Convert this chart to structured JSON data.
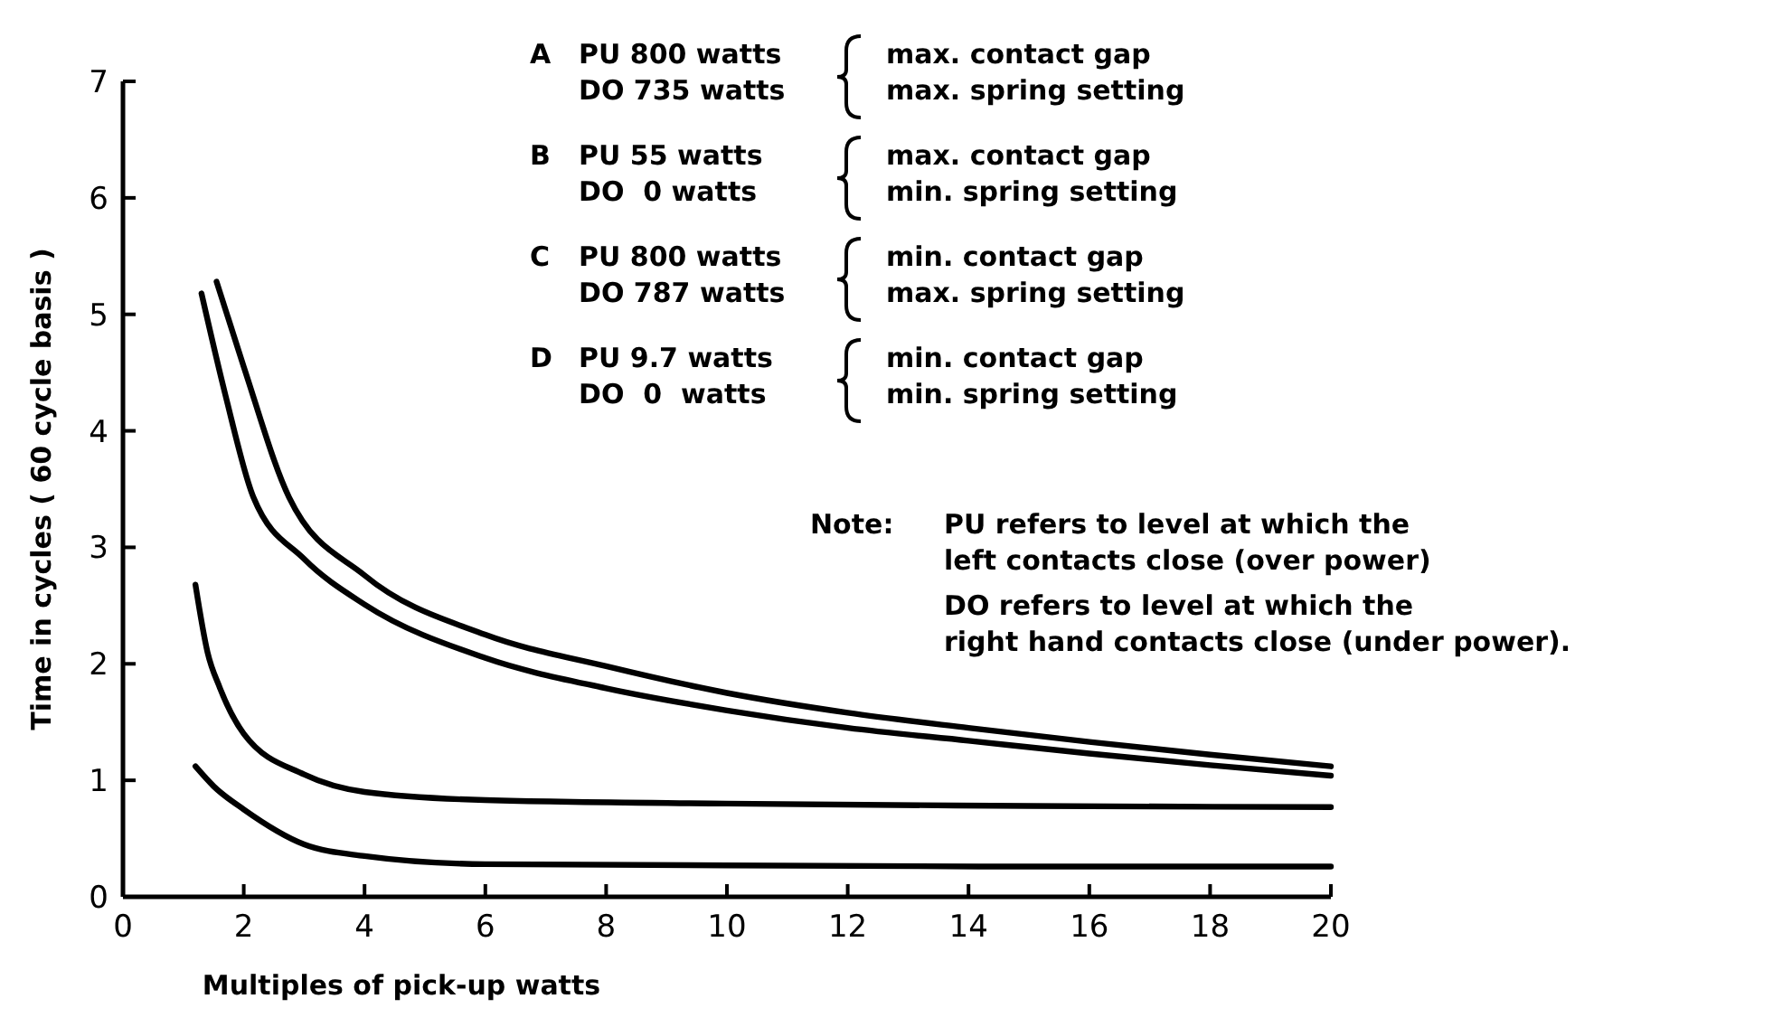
{
  "chart_data": {
    "type": "line",
    "xlabel": "Multiples of pick-up watts",
    "ylabel": "Time in cycles ( 60 cycle basis )",
    "xlim": [
      0,
      20
    ],
    "ylim": [
      0,
      7
    ],
    "xticks": [
      0,
      2,
      4,
      6,
      8,
      10,
      12,
      14,
      16,
      18,
      20
    ],
    "yticks": [
      0,
      1,
      2,
      3,
      4,
      5,
      6,
      7
    ],
    "grid": false,
    "marker": "none",
    "line_style": "solid",
    "series": [
      {
        "color": "#000000",
        "x": [
          1.55,
          2,
          2.75,
          4,
          6,
          8,
          10,
          12,
          14,
          16,
          18,
          20
        ],
        "values": [
          5.28,
          4.55,
          3.43,
          2.76,
          2.25,
          1.98,
          1.75,
          1.58,
          1.45,
          1.33,
          1.22,
          1.12
        ]
      },
      {
        "color": "#000000",
        "x": [
          1.3,
          1.7,
          2.16,
          3,
          4,
          6,
          8,
          10,
          12,
          14,
          16,
          18,
          20
        ],
        "values": [
          5.18,
          4.3,
          3.43,
          2.9,
          2.51,
          2.05,
          1.79,
          1.6,
          1.45,
          1.34,
          1.23,
          1.13,
          1.04
        ]
      },
      {
        "color": "#000000",
        "x": [
          1.2,
          1.4,
          1.6,
          2,
          3,
          4,
          6,
          10,
          15,
          20
        ],
        "values": [
          2.68,
          2.1,
          1.8,
          1.4,
          1.05,
          0.9,
          0.83,
          0.8,
          0.78,
          0.77
        ]
      },
      {
        "color": "#000000",
        "x": [
          1.2,
          1.5,
          2,
          3,
          4,
          6,
          10,
          15,
          20
        ],
        "values": [
          1.12,
          0.95,
          0.75,
          0.45,
          0.35,
          0.28,
          0.27,
          0.26,
          0.26
        ]
      }
    ],
    "annotations": [
      "A",
      "PU 800 watts",
      "DO 735 watts",
      "max. contact gap",
      "max. spring setting",
      "B",
      "PU 55 watts",
      "DO  0 watts",
      "max. contact gap",
      "min. spring setting",
      "C",
      "PU 800 watts",
      "DO 787 watts",
      "min. contact gap",
      "max. spring setting",
      "D",
      "PU 9.7 watts",
      "DO  0  watts",
      "min. contact gap",
      "min. spring setting",
      "Note:",
      "PU refers to level at which the",
      "left contacts close (over power)",
      "DO refers to level at which the",
      "right hand contacts close (under power)."
    ]
  }
}
